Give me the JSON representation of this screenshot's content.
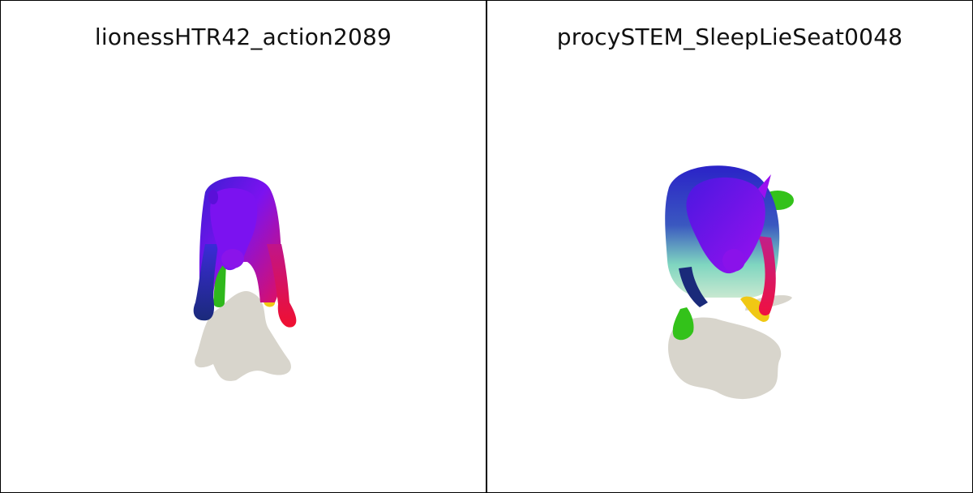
{
  "panels": [
    {
      "title": "lionessHTR42_action2089"
    },
    {
      "title": "procySTEM_SleepLieSeat0048"
    }
  ],
  "colors": {
    "shadow": "#d8d5cc",
    "purple": "#7b12f0",
    "blue": "#2a22c8",
    "navy": "#1a2a8a",
    "red": "#e0103a",
    "magenta": "#e0208a",
    "green": "#33c21a",
    "yellow": "#f0c814",
    "teal": "#7fd6c0"
  }
}
